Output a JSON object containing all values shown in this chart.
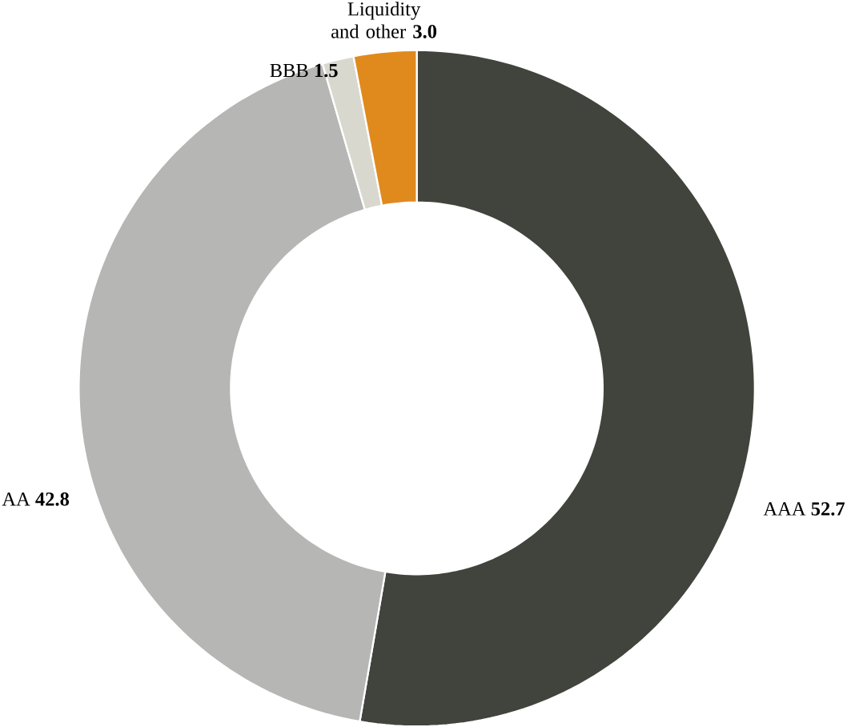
{
  "chart_data": {
    "type": "donut",
    "categories": [
      "AAA",
      "AA",
      "BBB",
      "Liquidity and other"
    ],
    "values": [
      52.7,
      42.8,
      1.5,
      3.0
    ],
    "value_labels": [
      "52.7",
      "42.8",
      "1.5",
      "3.0"
    ],
    "colors": [
      "#40443c",
      "#b6b6b4",
      "#d9d8cf",
      "#e08a1e"
    ]
  }
}
